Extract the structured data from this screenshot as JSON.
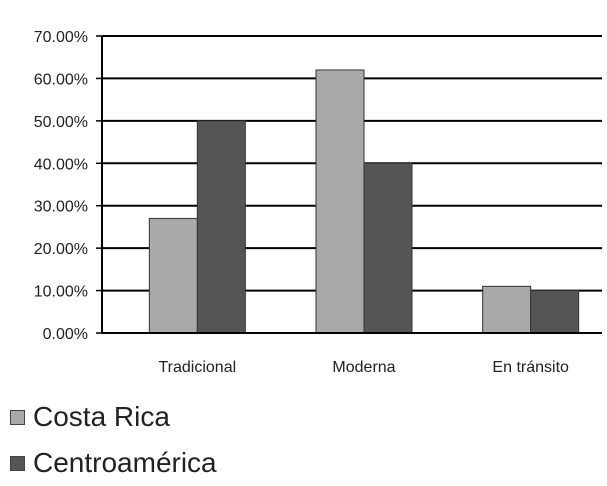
{
  "chart_data": {
    "type": "bar",
    "categories": [
      "Tradicional",
      "Moderna",
      "En tránsito"
    ],
    "series": [
      {
        "name": "Costa Rica",
        "values": [
          27.0,
          62.0,
          11.0
        ],
        "color": "#a9a9a9"
      },
      {
        "name": "Centroamérica",
        "values": [
          50.0,
          40.0,
          10.0
        ],
        "color": "#555555"
      }
    ],
    "ylim": [
      0,
      70
    ],
    "yticks": [
      0,
      10,
      20,
      30,
      40,
      50,
      60,
      70
    ],
    "ytick_labels": [
      "0.00%",
      "10.00%",
      "20.00%",
      "30.00%",
      "40.00%",
      "50.00%",
      "60.00%",
      "70.00%"
    ],
    "grid": true,
    "legend_position": "bottom-left",
    "title": "",
    "xlabel": "",
    "ylabel": ""
  }
}
